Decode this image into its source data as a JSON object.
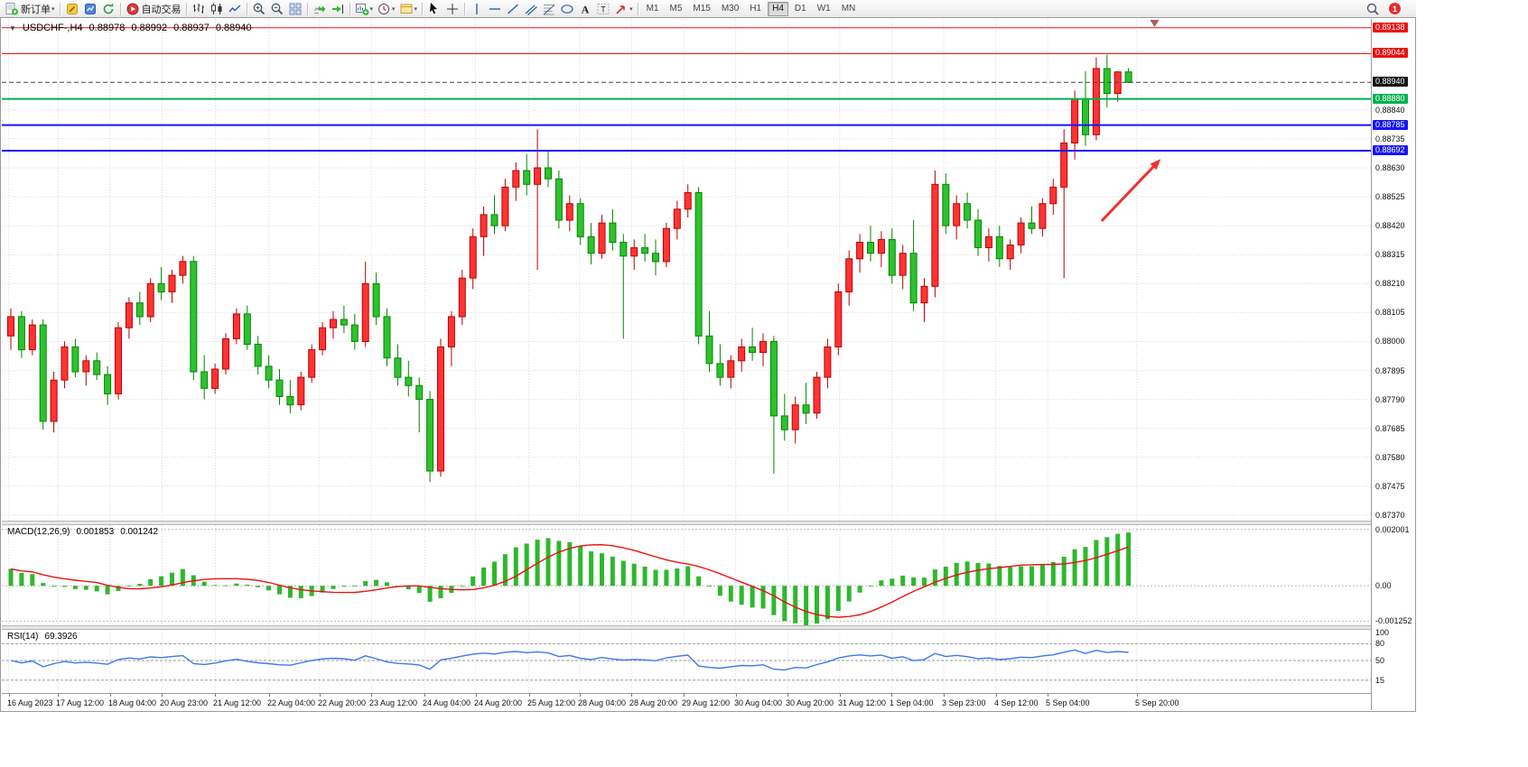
{
  "toolbar": {
    "new_order_label": "新订单",
    "autotrading_label": "自动交易",
    "notification_count": "1",
    "timeframes": [
      "M1",
      "M5",
      "M15",
      "M30",
      "H1",
      "H4",
      "D1",
      "W1",
      "MN"
    ],
    "active_timeframe": "H4",
    "groups": [
      {
        "items": [
          {
            "name": "new-order-button",
            "kind": "new-order",
            "label": "新订单",
            "caret": true
          }
        ]
      },
      {
        "items": [
          {
            "name": "metaeditor-button",
            "kind": "metaeditor"
          },
          {
            "name": "market-watch-button",
            "kind": "market-watch"
          },
          {
            "name": "refresh-button",
            "kind": "refresh"
          }
        ]
      },
      {
        "items": [
          {
            "name": "autotrading-button",
            "kind": "autotrading",
            "label": "自动交易"
          }
        ]
      },
      {
        "items": [
          {
            "name": "bar-chart-type-button",
            "kind": "bars"
          },
          {
            "name": "candlestick-chart-type-button",
            "kind": "candles"
          },
          {
            "name": "line-chart-type-button",
            "kind": "line"
          }
        ]
      },
      {
        "items": [
          {
            "name": "zoom-in-button",
            "kind": "zoom-in"
          },
          {
            "name": "zoom-out-button",
            "kind": "zoom-out"
          },
          {
            "name": "tile-windows-button",
            "kind": "tile"
          }
        ]
      },
      {
        "items": [
          {
            "name": "scroll-to-end-button",
            "kind": "scroll-end"
          },
          {
            "name": "auto-scroll-button",
            "kind": "auto-scroll"
          }
        ]
      },
      {
        "items": [
          {
            "name": "new-chart-button",
            "kind": "chart-plus",
            "caret": true
          },
          {
            "name": "periods-button",
            "kind": "clock",
            "caret": true
          },
          {
            "name": "templates-button",
            "kind": "template",
            "caret": true
          }
        ]
      },
      {
        "items": [
          {
            "name": "cursor-button",
            "kind": "cursor"
          },
          {
            "name": "crosshair-button",
            "kind": "crosshair"
          }
        ]
      },
      {
        "items": [
          {
            "name": "vertical-line-button",
            "kind": "vline"
          },
          {
            "name": "horizontal-line-button",
            "kind": "hline"
          },
          {
            "name": "trendline-button",
            "kind": "tline"
          },
          {
            "name": "channel-button",
            "kind": "channel"
          },
          {
            "name": "fibonacci-button",
            "kind": "fibo"
          },
          {
            "name": "shapes-button",
            "kind": "shapes"
          },
          {
            "name": "text-button",
            "kind": "text-a"
          },
          {
            "name": "text-label-button",
            "kind": "text-t"
          },
          {
            "name": "arrows-button",
            "kind": "arrow-obj",
            "caret": true
          }
        ]
      }
    ]
  },
  "chart_data": {
    "type": "candlestick",
    "title": "USDCHF-,H4",
    "symbol": "USDCHF-",
    "period": "H4",
    "ohlc_display": {
      "open": "0.88978",
      "high": "0.88992",
      "low": "0.88937",
      "close": "0.88940"
    },
    "current_price": "0.88940",
    "price_axis": {
      "max": 0.8917,
      "min": 0.8735,
      "ticks": [
        "0.88840",
        "0.88735",
        "0.88630",
        "0.88525",
        "0.88420",
        "0.88315",
        "0.88210",
        "0.88105",
        "0.88000",
        "0.87895",
        "0.87790",
        "0.87685",
        "0.87580",
        "0.87475",
        "0.87370"
      ]
    },
    "hlines": [
      {
        "label": "0.89138",
        "value": 0.89138,
        "color": "#ee1111",
        "width": 1
      },
      {
        "label": "0.89044",
        "value": 0.89044,
        "color": "#ee1111",
        "width": 1
      },
      {
        "label": "0.88880",
        "value": 0.8888,
        "color": "#00b050",
        "width": 2
      },
      {
        "label": "0.88785",
        "value": 0.88785,
        "color": "#1414ff",
        "width": 2
      },
      {
        "label": "0.88692",
        "value": 0.88692,
        "color": "#1414ff",
        "width": 2
      }
    ],
    "time_axis": {
      "ticks": [
        {
          "label": "16 Aug 2023",
          "xf": 0.005
        },
        {
          "label": "17 Aug 12:00",
          "xf": 0.041
        },
        {
          "label": "18 Aug 04:00",
          "xf": 0.079
        },
        {
          "label": "20 Aug 23:00",
          "xf": 0.117
        },
        {
          "label": "21 Aug 12:00",
          "xf": 0.156
        },
        {
          "label": "22 Aug 04:00",
          "xf": 0.195
        },
        {
          "label": "22 Aug 20:00",
          "xf": 0.232
        },
        {
          "label": "23 Aug 12:00",
          "xf": 0.27
        },
        {
          "label": "24 Aug 04:00",
          "xf": 0.309
        },
        {
          "label": "24 Aug 20:00",
          "xf": 0.346
        },
        {
          "label": "25 Aug 12:00",
          "xf": 0.385
        },
        {
          "label": "28 Aug 04:00",
          "xf": 0.422
        },
        {
          "label": "28 Aug 20:00",
          "xf": 0.46
        },
        {
          "label": "29 Aug 12:00",
          "xf": 0.498
        },
        {
          "label": "30 Aug 04:00",
          "xf": 0.536
        },
        {
          "label": "30 Aug 20:00",
          "xf": 0.574
        },
        {
          "label": "31 Aug 12:00",
          "xf": 0.612
        },
        {
          "label": "1 Sep 04:00",
          "xf": 0.65
        },
        {
          "label": "3 Sep 23:00",
          "xf": 0.688
        },
        {
          "label": "4 Sep 12:00",
          "xf": 0.726
        },
        {
          "label": "5 Sep 04:00",
          "xf": 0.764
        },
        {
          "label": "5 Sep 20:00",
          "xf": 0.829
        }
      ]
    },
    "candles": [
      [
        0.8802,
        0.8812,
        0.8797,
        0.8809
      ],
      [
        0.8809,
        0.8811,
        0.8794,
        0.8797
      ],
      [
        0.8797,
        0.8808,
        0.8795,
        0.8806
      ],
      [
        0.8806,
        0.8808,
        0.8768,
        0.8771
      ],
      [
        0.8771,
        0.8789,
        0.8767,
        0.8786
      ],
      [
        0.8786,
        0.88,
        0.8783,
        0.8798
      ],
      [
        0.8798,
        0.8801,
        0.8787,
        0.8789
      ],
      [
        0.8789,
        0.8795,
        0.8784,
        0.8793
      ],
      [
        0.8793,
        0.8796,
        0.8786,
        0.8788
      ],
      [
        0.8788,
        0.8791,
        0.8777,
        0.8781
      ],
      [
        0.8781,
        0.8807,
        0.8779,
        0.8805
      ],
      [
        0.8805,
        0.8816,
        0.8801,
        0.8814
      ],
      [
        0.8814,
        0.8818,
        0.8806,
        0.8809
      ],
      [
        0.8809,
        0.8823,
        0.8807,
        0.8821
      ],
      [
        0.8821,
        0.8827,
        0.8815,
        0.8818
      ],
      [
        0.8818,
        0.8826,
        0.8814,
        0.8824
      ],
      [
        0.8824,
        0.8831,
        0.8821,
        0.8829
      ],
      [
        0.8829,
        0.8831,
        0.8786,
        0.8789
      ],
      [
        0.8789,
        0.8795,
        0.8779,
        0.8783
      ],
      [
        0.8783,
        0.8792,
        0.8781,
        0.879
      ],
      [
        0.879,
        0.8803,
        0.8788,
        0.8801
      ],
      [
        0.8801,
        0.8812,
        0.8799,
        0.881
      ],
      [
        0.881,
        0.8813,
        0.8797,
        0.8799
      ],
      [
        0.8799,
        0.8802,
        0.8788,
        0.8791
      ],
      [
        0.8791,
        0.8795,
        0.8783,
        0.8786
      ],
      [
        0.8786,
        0.879,
        0.8777,
        0.878
      ],
      [
        0.878,
        0.8786,
        0.8774,
        0.8777
      ],
      [
        0.8777,
        0.8789,
        0.8775,
        0.8787
      ],
      [
        0.8787,
        0.8799,
        0.8785,
        0.8797
      ],
      [
        0.8797,
        0.8807,
        0.8795,
        0.8805
      ],
      [
        0.8805,
        0.8811,
        0.8801,
        0.8808
      ],
      [
        0.8808,
        0.8813,
        0.8803,
        0.8806
      ],
      [
        0.8806,
        0.881,
        0.8797,
        0.88
      ],
      [
        0.88,
        0.8829,
        0.8798,
        0.8821
      ],
      [
        0.8821,
        0.8825,
        0.8806,
        0.8809
      ],
      [
        0.8809,
        0.8812,
        0.8791,
        0.8794
      ],
      [
        0.8794,
        0.8799,
        0.8784,
        0.8787
      ],
      [
        0.8787,
        0.8793,
        0.878,
        0.8784
      ],
      [
        0.8784,
        0.8787,
        0.8767,
        0.8779
      ],
      [
        0.8779,
        0.8782,
        0.8749,
        0.8753
      ],
      [
        0.8753,
        0.8801,
        0.8751,
        0.8798
      ],
      [
        0.8798,
        0.8811,
        0.8791,
        0.8809
      ],
      [
        0.8809,
        0.8826,
        0.8806,
        0.8823
      ],
      [
        0.8823,
        0.8841,
        0.8819,
        0.8838
      ],
      [
        0.8838,
        0.8849,
        0.8831,
        0.8846
      ],
      [
        0.8846,
        0.8853,
        0.8839,
        0.8842
      ],
      [
        0.8842,
        0.8859,
        0.884,
        0.8856
      ],
      [
        0.8856,
        0.8865,
        0.8851,
        0.8862
      ],
      [
        0.8862,
        0.8868,
        0.8853,
        0.8857
      ],
      [
        0.8857,
        0.8877,
        0.8826,
        0.8863
      ],
      [
        0.8863,
        0.8869,
        0.8856,
        0.8859
      ],
      [
        0.8859,
        0.8862,
        0.8841,
        0.8844
      ],
      [
        0.8844,
        0.8853,
        0.884,
        0.885
      ],
      [
        0.885,
        0.8852,
        0.8835,
        0.8838
      ],
      [
        0.8838,
        0.8843,
        0.8828,
        0.8832
      ],
      [
        0.8832,
        0.8846,
        0.883,
        0.8843
      ],
      [
        0.8843,
        0.8848,
        0.8833,
        0.8836
      ],
      [
        0.8836,
        0.8839,
        0.8801,
        0.8831
      ],
      [
        0.8831,
        0.8837,
        0.8826,
        0.8834
      ],
      [
        0.8834,
        0.8839,
        0.8829,
        0.8832
      ],
      [
        0.8832,
        0.8837,
        0.8824,
        0.8829
      ],
      [
        0.8829,
        0.8843,
        0.8827,
        0.8841
      ],
      [
        0.8841,
        0.8851,
        0.8837,
        0.8848
      ],
      [
        0.8848,
        0.8857,
        0.8845,
        0.8854
      ],
      [
        0.8854,
        0.8856,
        0.8799,
        0.8802
      ],
      [
        0.8802,
        0.8811,
        0.8789,
        0.8792
      ],
      [
        0.8792,
        0.8799,
        0.8784,
        0.8787
      ],
      [
        0.8787,
        0.8795,
        0.8783,
        0.8793
      ],
      [
        0.8793,
        0.8801,
        0.8789,
        0.8798
      ],
      [
        0.8798,
        0.8805,
        0.8793,
        0.8796
      ],
      [
        0.8796,
        0.8803,
        0.8791,
        0.88
      ],
      [
        0.88,
        0.8802,
        0.8752,
        0.8773
      ],
      [
        0.8773,
        0.8781,
        0.8764,
        0.8768
      ],
      [
        0.8768,
        0.878,
        0.8763,
        0.8777
      ],
      [
        0.8777,
        0.8785,
        0.877,
        0.8774
      ],
      [
        0.8774,
        0.8789,
        0.8772,
        0.8787
      ],
      [
        0.8787,
        0.8801,
        0.8783,
        0.8798
      ],
      [
        0.8798,
        0.8821,
        0.8795,
        0.8818
      ],
      [
        0.8818,
        0.8833,
        0.8813,
        0.883
      ],
      [
        0.883,
        0.8839,
        0.8825,
        0.8836
      ],
      [
        0.8836,
        0.8842,
        0.8829,
        0.8832
      ],
      [
        0.8832,
        0.884,
        0.8827,
        0.8837
      ],
      [
        0.8837,
        0.8841,
        0.8821,
        0.8824
      ],
      [
        0.8824,
        0.8835,
        0.8819,
        0.8832
      ],
      [
        0.8832,
        0.8844,
        0.8811,
        0.8814
      ],
      [
        0.8814,
        0.8823,
        0.8807,
        0.882
      ],
      [
        0.882,
        0.8862,
        0.8816,
        0.8857
      ],
      [
        0.8857,
        0.8861,
        0.8839,
        0.8842
      ],
      [
        0.8842,
        0.8853,
        0.8837,
        0.885
      ],
      [
        0.885,
        0.8854,
        0.8841,
        0.8844
      ],
      [
        0.8844,
        0.8848,
        0.8831,
        0.8834
      ],
      [
        0.8834,
        0.8841,
        0.8829,
        0.8838
      ],
      [
        0.8838,
        0.8842,
        0.8827,
        0.883
      ],
      [
        0.883,
        0.8837,
        0.8826,
        0.8835
      ],
      [
        0.8835,
        0.8845,
        0.8832,
        0.8843
      ],
      [
        0.8843,
        0.8849,
        0.8839,
        0.8841
      ],
      [
        0.8841,
        0.8852,
        0.8838,
        0.885
      ],
      [
        0.885,
        0.8859,
        0.8846,
        0.8856
      ],
      [
        0.8856,
        0.8877,
        0.8823,
        0.8872
      ],
      [
        0.8872,
        0.8891,
        0.8866,
        0.8888
      ],
      [
        0.8888,
        0.8898,
        0.8871,
        0.8875
      ],
      [
        0.8875,
        0.8903,
        0.8873,
        0.8899
      ],
      [
        0.8899,
        0.8904,
        0.8885,
        0.889
      ],
      [
        0.889,
        0.8898,
        0.8887,
        0.88978
      ],
      [
        0.88978,
        0.88992,
        0.88937,
        0.8894
      ]
    ],
    "macd": {
      "label": "MACD(12,26,9)",
      "value_main": "0.001853",
      "value_signal": "0.001242",
      "params": [
        12,
        26,
        9
      ],
      "range": {
        "max": 0.00215,
        "min": -0.0014
      },
      "axis_labels": [
        {
          "text": "0.002001",
          "value": 0.002001
        },
        {
          "text": "0.00",
          "value": 0
        },
        {
          "text": "-0.001252",
          "value": -0.001252
        }
      ],
      "histogram_color": "#2db82d",
      "signal_color": "#ee1111"
    },
    "rsi": {
      "label": "RSI(14)",
      "value": "69.3926",
      "period": 14,
      "range": [
        0,
        100
      ],
      "levels": [
        80,
        50,
        15
      ],
      "axis_labels": [
        "100",
        "80",
        "50",
        "15"
      ],
      "color": "#3c78f0"
    },
    "annotations": {
      "arrow": {
        "from_index": 101.5,
        "from_price": 0.88437,
        "to_index": 107,
        "to_price": 0.88662,
        "color": "#f03030"
      },
      "shift_marker_xf": 0.842
    },
    "colors": {
      "up": "#ff3434",
      "up_border": "#bb0000",
      "down": "#2fc12f",
      "down_border": "#008800",
      "grid": "#dcdcdc",
      "current_line": "#444444"
    }
  }
}
